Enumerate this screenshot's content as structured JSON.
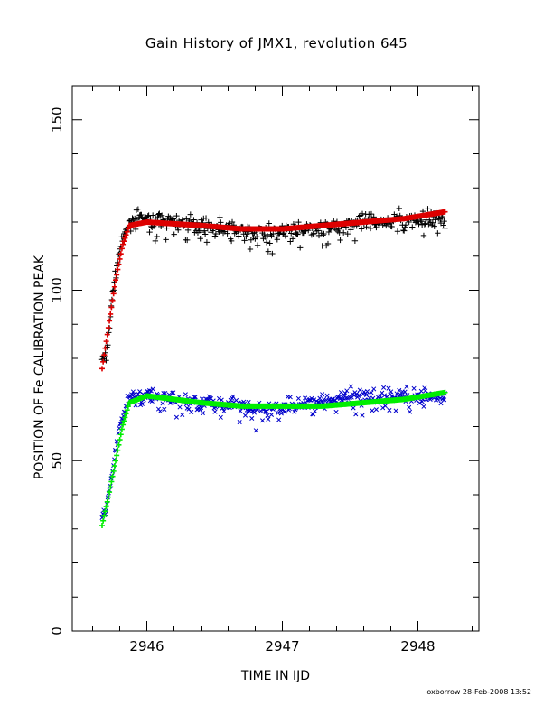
{
  "chart_data": {
    "type": "scatter",
    "title": "Gain History of JMX1, revolution 645",
    "xlabel": "TIME IN IJD",
    "ylabel": "POSITION OF Fe CALIBRATION PEAK",
    "xlim": [
      2945.45,
      2948.45
    ],
    "ylim": [
      0,
      160
    ],
    "x_ticks": [
      2946,
      2947,
      2948
    ],
    "x_tick_labels": [
      "2946",
      "2947",
      "2948"
    ],
    "y_ticks": [
      0,
      50,
      100,
      150
    ],
    "y_tick_labels": [
      "0",
      "50",
      "100",
      "150"
    ],
    "grid": false,
    "legend": "none",
    "footer": "oxborrow 28-Feb-2008 13:52",
    "series": [
      {
        "marker": "plus",
        "color": "#000000",
        "x_range": [
          2945.67,
          2948.2
        ],
        "count": 420,
        "typical_range": [
          113,
          127
        ],
        "values": [
          [
            2945.7,
            80
          ],
          [
            2945.75,
            100
          ],
          [
            2945.8,
            112
          ],
          [
            2945.85,
            118
          ],
          [
            2945.9,
            121
          ],
          [
            2946.0,
            121
          ],
          [
            2946.2,
            120
          ],
          [
            2946.4,
            119
          ],
          [
            2946.6,
            118
          ],
          [
            2946.8,
            117
          ],
          [
            2947.0,
            117
          ],
          [
            2947.2,
            118
          ],
          [
            2947.4,
            119
          ],
          [
            2947.6,
            120
          ],
          [
            2947.8,
            121
          ],
          [
            2948.0,
            121
          ],
          [
            2948.2,
            121
          ]
        ]
      },
      {
        "marker": "plus",
        "color": "#dd0000",
        "role": "fit",
        "values": [
          [
            2945.67,
            77
          ],
          [
            2945.72,
            90
          ],
          [
            2945.77,
            103
          ],
          [
            2945.82,
            113
          ],
          [
            2945.87,
            119
          ],
          [
            2946.0,
            120
          ],
          [
            2946.4,
            119
          ],
          [
            2946.7,
            118
          ],
          [
            2947.0,
            118
          ],
          [
            2947.3,
            119
          ],
          [
            2947.6,
            120
          ],
          [
            2947.9,
            121
          ],
          [
            2948.2,
            123
          ]
        ]
      },
      {
        "marker": "cross",
        "color": "#0000cc",
        "x_range": [
          2945.67,
          2948.2
        ],
        "count": 420,
        "typical_range": [
          62,
          73
        ],
        "values": [
          [
            2945.7,
            35
          ],
          [
            2945.75,
            48
          ],
          [
            2945.8,
            60
          ],
          [
            2945.85,
            67
          ],
          [
            2945.9,
            69
          ],
          [
            2946.0,
            69
          ],
          [
            2946.2,
            68
          ],
          [
            2946.4,
            67
          ],
          [
            2946.6,
            67
          ],
          [
            2946.8,
            65
          ],
          [
            2947.0,
            66
          ],
          [
            2947.2,
            67
          ],
          [
            2947.4,
            68
          ],
          [
            2947.6,
            69
          ],
          [
            2947.8,
            69
          ],
          [
            2948.0,
            69
          ],
          [
            2948.2,
            69
          ]
        ]
      },
      {
        "marker": "plus",
        "color": "#00ee00",
        "role": "fit",
        "values": [
          [
            2945.67,
            31
          ],
          [
            2945.72,
            40
          ],
          [
            2945.77,
            50
          ],
          [
            2945.82,
            60
          ],
          [
            2945.87,
            67
          ],
          [
            2946.0,
            69
          ],
          [
            2946.4,
            67
          ],
          [
            2946.7,
            66
          ],
          [
            2947.0,
            66
          ],
          [
            2947.3,
            66
          ],
          [
            2947.6,
            67
          ],
          [
            2947.9,
            68
          ],
          [
            2948.2,
            70
          ]
        ]
      }
    ]
  }
}
